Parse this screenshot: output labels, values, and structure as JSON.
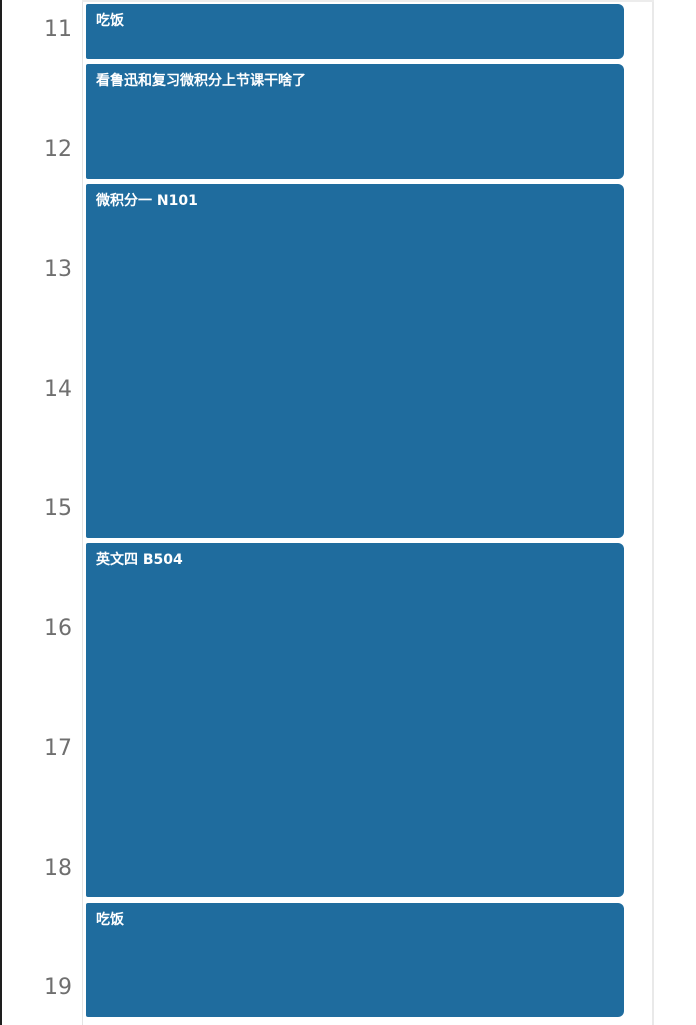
{
  "timeline": {
    "hours": [
      "11",
      "12",
      "13",
      "14",
      "15",
      "16",
      "17",
      "18",
      "19"
    ]
  },
  "events": [
    {
      "title": "吃饭"
    },
    {
      "title": "看鲁迅和复习微积分上节课干啥了"
    },
    {
      "title": "微积分一 N101"
    },
    {
      "title": "英文四 B504"
    },
    {
      "title": "吃饭"
    }
  ],
  "colors": {
    "event_fill": "#1f6c9e",
    "event_text": "#ffffff",
    "hour_text": "#6f6f6f"
  }
}
